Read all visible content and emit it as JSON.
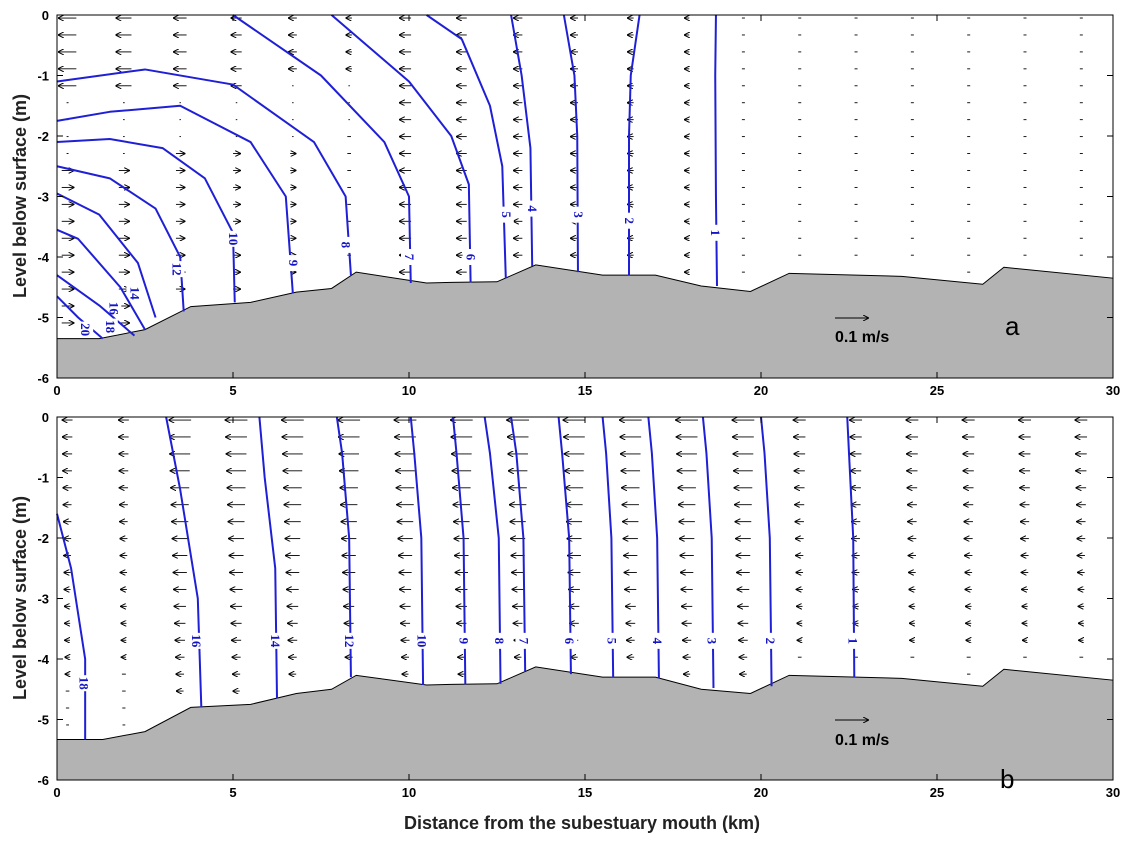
{
  "chart_data": [
    {
      "type": "contour",
      "panel_label": "a",
      "title": "",
      "ylabel": "Level below surface (m)",
      "xlabel": "",
      "xlim": [
        0,
        30
      ],
      "ylim": [
        -6,
        0
      ],
      "x_ticks": [
        "0",
        "5",
        "10",
        "15",
        "20",
        "25",
        "30"
      ],
      "y_ticks": [
        "0",
        "-1",
        "-2",
        "-3",
        "-4",
        "-5",
        "-6"
      ],
      "scale_arrow_label": "0.1 m/s",
      "bed_color": "#b3b3b3",
      "contour_color": "#1f1fd6",
      "bed_profile": [
        [
          0,
          -5.35
        ],
        [
          1.2,
          -5.35
        ],
        [
          2.5,
          -5.2
        ],
        [
          3.8,
          -4.82
        ],
        [
          5.5,
          -4.75
        ],
        [
          6.8,
          -4.58
        ],
        [
          7.8,
          -4.52
        ],
        [
          8.5,
          -4.25
        ],
        [
          10.5,
          -4.43
        ],
        [
          11.2,
          -4.42
        ],
        [
          12.5,
          -4.41
        ],
        [
          13.6,
          -4.13
        ],
        [
          15.5,
          -4.3
        ],
        [
          17.0,
          -4.3
        ],
        [
          18.3,
          -4.48
        ],
        [
          19.7,
          -4.57
        ],
        [
          20.8,
          -4.27
        ],
        [
          24.0,
          -4.32
        ],
        [
          26.3,
          -4.45
        ],
        [
          26.9,
          -4.17
        ],
        [
          30,
          -4.35
        ]
      ],
      "contours": [
        {
          "level": "1",
          "points": [
            [
              18.75,
              -4.48
            ],
            [
              18.72,
              -3
            ],
            [
              18.7,
              -1
            ],
            [
              18.72,
              0
            ]
          ],
          "label_at": [
            18.7,
            -3.6
          ]
        },
        {
          "level": "2",
          "points": [
            [
              16.25,
              -4.3
            ],
            [
              16.25,
              -2
            ],
            [
              16.3,
              -1
            ],
            [
              16.55,
              0
            ]
          ],
          "label_at": [
            16.25,
            -3.4
          ]
        },
        {
          "level": "3",
          "points": [
            [
              14.8,
              -4.25
            ],
            [
              14.78,
              -2
            ],
            [
              14.7,
              -1
            ],
            [
              14.4,
              0
            ]
          ],
          "label_at": [
            14.8,
            -3.3
          ]
        },
        {
          "level": "4",
          "points": [
            [
              13.5,
              -4.15
            ],
            [
              13.45,
              -2.2
            ],
            [
              13.2,
              -1
            ],
            [
              12.9,
              0
            ]
          ],
          "label_at": [
            13.5,
            -3.2
          ]
        },
        {
          "level": "5",
          "points": [
            [
              12.75,
              -4.35
            ],
            [
              12.65,
              -2.5
            ],
            [
              12.3,
              -1.5
            ],
            [
              11.5,
              -0.4
            ],
            [
              10.5,
              0
            ]
          ],
          "label_at": [
            12.75,
            -3.3
          ]
        },
        {
          "level": "6",
          "points": [
            [
              11.75,
              -4.42
            ],
            [
              11.7,
              -2.8
            ],
            [
              11.2,
              -2
            ],
            [
              10,
              -1.1
            ],
            [
              7.8,
              0
            ]
          ],
          "label_at": [
            11.75,
            -4.0
          ]
        },
        {
          "level": "7",
          "points": [
            [
              10.05,
              -4.43
            ],
            [
              10,
              -3
            ],
            [
              9.3,
              -2.1
            ],
            [
              7.5,
              -1.0
            ],
            [
              5,
              0
            ]
          ],
          "label_at": [
            10.0,
            -4.0
          ]
        },
        {
          "level": "8",
          "points": [
            [
              8.35,
              -4.3
            ],
            [
              8.2,
              -3
            ],
            [
              7.3,
              -2.1
            ],
            [
              5,
              -1.15
            ],
            [
              2.5,
              -0.9
            ],
            [
              0,
              -1.1
            ]
          ],
          "label_at": [
            8.2,
            -3.8
          ]
        },
        {
          "level": "9",
          "points": [
            [
              6.7,
              -4.6
            ],
            [
              6.5,
              -3
            ],
            [
              5.5,
              -2.1
            ],
            [
              3.5,
              -1.5
            ],
            [
              1.5,
              -1.6
            ],
            [
              0,
              -1.75
            ]
          ],
          "label_at": [
            6.7,
            -4.1
          ]
        },
        {
          "level": "10",
          "points": [
            [
              5.05,
              -4.75
            ],
            [
              5,
              -3.6
            ],
            [
              4.2,
              -2.7
            ],
            [
              3,
              -2.2
            ],
            [
              1.5,
              -2.05
            ],
            [
              0,
              -2.1
            ]
          ],
          "label_at": [
            5.0,
            -3.7
          ]
        },
        {
          "level": "12",
          "points": [
            [
              3.6,
              -4.9
            ],
            [
              3.5,
              -4
            ],
            [
              2.8,
              -3.2
            ],
            [
              1.5,
              -2.7
            ],
            [
              0,
              -2.5
            ]
          ],
          "label_at": [
            3.4,
            -4.2
          ]
        },
        {
          "level": "14",
          "points": [
            [
              2.8,
              -5.0
            ],
            [
              2.3,
              -4.1
            ],
            [
              1.2,
              -3.3
            ],
            [
              0,
              -2.95
            ]
          ],
          "label_at": [
            2.2,
            -4.6
          ]
        },
        {
          "level": "16",
          "points": [
            [
              2.5,
              -5.2
            ],
            [
              1.8,
              -4.5
            ],
            [
              0.6,
              -3.7
            ],
            [
              0,
              -3.55
            ]
          ],
          "label_at": [
            1.6,
            -4.85
          ]
        },
        {
          "level": "18",
          "points": [
            [
              2.2,
              -5.3
            ],
            [
              1.2,
              -4.8
            ],
            [
              0,
              -4.3
            ]
          ],
          "label_at": [
            1.5,
            -5.15
          ]
        },
        {
          "level": "20",
          "points": [
            [
              1.3,
              -5.35
            ],
            [
              0.6,
              -5.0
            ],
            [
              0,
              -4.65
            ]
          ],
          "label_at": [
            0.8,
            -5.2
          ]
        }
      ]
    },
    {
      "type": "contour",
      "panel_label": "b",
      "title": "",
      "ylabel": "Level below surface (m)",
      "xlabel": "Distance from the subestuary mouth (km)",
      "xlim": [
        0,
        30
      ],
      "ylim": [
        -6,
        0
      ],
      "x_ticks": [
        "0",
        "5",
        "10",
        "15",
        "20",
        "25",
        "30"
      ],
      "y_ticks": [
        "0",
        "-1",
        "-2",
        "-3",
        "-4",
        "-5",
        "-6"
      ],
      "scale_arrow_label": "0.1 m/s",
      "bed_color": "#b3b3b3",
      "contour_color": "#1f1fd6",
      "bed_profile": [
        [
          0,
          -5.33
        ],
        [
          1.3,
          -5.33
        ],
        [
          2.5,
          -5.2
        ],
        [
          3.8,
          -4.8
        ],
        [
          5.5,
          -4.75
        ],
        [
          6.8,
          -4.57
        ],
        [
          7.8,
          -4.5
        ],
        [
          8.5,
          -4.27
        ],
        [
          10.5,
          -4.43
        ],
        [
          11.2,
          -4.42
        ],
        [
          12.5,
          -4.41
        ],
        [
          13.6,
          -4.13
        ],
        [
          15.5,
          -4.3
        ],
        [
          17.0,
          -4.3
        ],
        [
          18.3,
          -4.5
        ],
        [
          19.7,
          -4.57
        ],
        [
          20.8,
          -4.27
        ],
        [
          24.0,
          -4.32
        ],
        [
          26.3,
          -4.45
        ],
        [
          26.9,
          -4.17
        ],
        [
          30,
          -4.35
        ]
      ],
      "contours": [
        {
          "level": "1",
          "points": [
            [
              22.65,
              -4.3
            ],
            [
              22.62,
              -2
            ],
            [
              22.5,
              -0.6
            ],
            [
              22.45,
              0
            ]
          ],
          "label_at": [
            22.6,
            -3.7
          ]
        },
        {
          "level": "2",
          "points": [
            [
              20.3,
              -4.45
            ],
            [
              20.25,
              -2
            ],
            [
              20.1,
              -0.6
            ],
            [
              20.0,
              0
            ]
          ],
          "label_at": [
            20.25,
            -3.7
          ]
        },
        {
          "level": "3",
          "points": [
            [
              18.65,
              -4.48
            ],
            [
              18.6,
              -2
            ],
            [
              18.45,
              -0.6
            ],
            [
              18.35,
              0
            ]
          ],
          "label_at": [
            18.6,
            -3.7
          ]
        },
        {
          "level": "4",
          "points": [
            [
              17.1,
              -4.32
            ],
            [
              17.05,
              -2
            ],
            [
              16.9,
              -0.6
            ],
            [
              16.8,
              0
            ]
          ],
          "label_at": [
            17.05,
            -3.7
          ]
        },
        {
          "level": "5",
          "points": [
            [
              15.8,
              -4.3
            ],
            [
              15.75,
              -2
            ],
            [
              15.6,
              -0.6
            ],
            [
              15.5,
              0
            ]
          ],
          "label_at": [
            15.75,
            -3.7
          ]
        },
        {
          "level": "6",
          "points": [
            [
              14.6,
              -4.25
            ],
            [
              14.55,
              -2
            ],
            [
              14.35,
              -0.6
            ],
            [
              14.25,
              0
            ]
          ],
          "label_at": [
            14.55,
            -3.7
          ]
        },
        {
          "level": "7",
          "points": [
            [
              13.3,
              -4.2
            ],
            [
              13.25,
              -2
            ],
            [
              13.05,
              -0.6
            ],
            [
              12.9,
              0
            ]
          ],
          "label_at": [
            13.25,
            -3.7
          ]
        },
        {
          "level": "8",
          "points": [
            [
              12.6,
              -4.41
            ],
            [
              12.55,
              -2
            ],
            [
              12.3,
              -0.6
            ],
            [
              12.15,
              0
            ]
          ],
          "label_at": [
            12.55,
            -3.7
          ]
        },
        {
          "level": "9",
          "points": [
            [
              11.6,
              -4.42
            ],
            [
              11.55,
              -2
            ],
            [
              11.35,
              -0.6
            ],
            [
              11.25,
              0
            ]
          ],
          "label_at": [
            11.55,
            -3.7
          ]
        },
        {
          "level": "10",
          "points": [
            [
              10.4,
              -4.43
            ],
            [
              10.35,
              -2
            ],
            [
              10.15,
              -0.6
            ],
            [
              10.05,
              0
            ]
          ],
          "label_at": [
            10.35,
            -3.7
          ]
        },
        {
          "level": "12",
          "points": [
            [
              8.35,
              -4.3
            ],
            [
              8.3,
              -2
            ],
            [
              8.1,
              -0.6
            ],
            [
              7.95,
              0
            ]
          ],
          "label_at": [
            8.3,
            -3.7
          ]
        },
        {
          "level": "14",
          "points": [
            [
              6.25,
              -4.65
            ],
            [
              6.2,
              -2.5
            ],
            [
              5.9,
              -1
            ],
            [
              5.75,
              0
            ]
          ],
          "label_at": [
            6.2,
            -3.7
          ]
        },
        {
          "level": "16",
          "points": [
            [
              4.1,
              -4.8
            ],
            [
              4.0,
              -3
            ],
            [
              3.5,
              -1.2
            ],
            [
              3.1,
              0
            ]
          ],
          "label_at": [
            3.95,
            -3.7
          ]
        },
        {
          "level": "18",
          "points": [
            [
              0.8,
              -5.33
            ],
            [
              0.8,
              -4
            ],
            [
              0.4,
              -2.5
            ],
            [
              0,
              -1.6
            ]
          ],
          "label_at": [
            0.75,
            -4.4
          ]
        }
      ]
    }
  ]
}
